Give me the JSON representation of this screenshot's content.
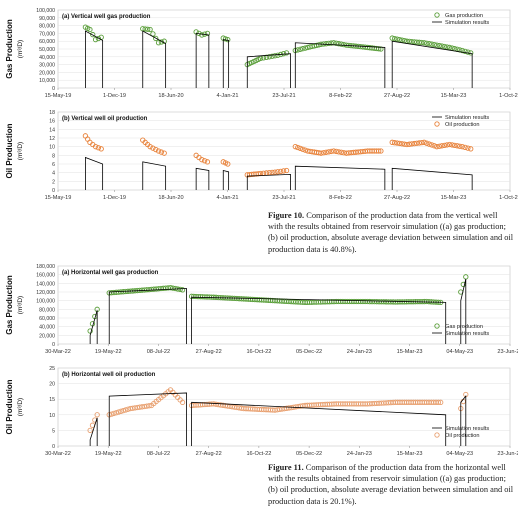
{
  "figure10": {
    "panel_a": {
      "chart_data": {
        "type": "line",
        "title": "(a) Vertical well gas production",
        "ylabel": "Gas Production (m³/D)",
        "ylim": [
          0,
          100000
        ],
        "yticks": [
          "0",
          "10,000",
          "20,000",
          "30,000",
          "40,000",
          "50,000",
          "60,000",
          "70,000",
          "80,000",
          "90,000",
          "100,000"
        ],
        "xticks": [
          "15-May-19",
          "1-Dec-19",
          "18-Jun-20",
          "4-Jan-21",
          "23-Jul-21",
          "8-Feb-22",
          "27-Aug-22",
          "15-Mar-23",
          "1-Oct-23"
        ],
        "xrange": [
          "2019-05-15",
          "2023-10-01"
        ],
        "legend": [
          "Gas production",
          "Simulation results"
        ],
        "legend_position": "top-right",
        "colors": {
          "observed": "#5a9e3a",
          "simulation": "#000000"
        },
        "series": [
          {
            "name": "Gas production",
            "style": "markers",
            "segments": [
              {
                "x": [
                  "2019-08-20",
                  "2019-09-05",
                  "2019-09-25",
                  "2019-10-15"
                ],
                "y": [
                  78000,
                  75000,
                  62000,
                  65000
                ]
              },
              {
                "x": [
                  "2020-03-10",
                  "2020-04-05",
                  "2020-05-05",
                  "2020-05-25"
                ],
                "y": [
                  76000,
                  75000,
                  58000,
                  60000
                ]
              },
              {
                "x": [
                  "2020-09-15",
                  "2020-10-05",
                  "2020-10-25"
                ],
                "y": [
                  72000,
                  68000,
                  70000
                ]
              },
              {
                "x": [
                  "2020-12-20",
                  "2021-01-05"
                ],
                "y": [
                  64000,
                  62000
                ]
              },
              {
                "x": [
                  "2021-03-15",
                  "2021-05-01",
                  "2021-06-01",
                  "2021-07-01",
                  "2021-08-01"
                ],
                "y": [
                  30000,
                  38000,
                  40000,
                  42000,
                  45000
                ]
              },
              {
                "x": [
                  "2021-09-01",
                  "2021-10-15",
                  "2021-12-01",
                  "2022-01-15",
                  "2022-03-01",
                  "2022-05-15",
                  "2022-07-01"
                ],
                "y": [
                  48000,
                  52000,
                  56000,
                  58000,
                  55000,
                  52000,
                  50000
                ]
              },
              {
                "x": [
                  "2022-08-10",
                  "2022-10-01",
                  "2022-12-01",
                  "2023-01-15",
                  "2023-03-01",
                  "2023-04-15",
                  "2023-05-15"
                ],
                "y": [
                  64000,
                  60000,
                  58000,
                  55000,
                  52000,
                  48000,
                  45000
                ]
              }
            ]
          },
          {
            "name": "Simulation results",
            "style": "line",
            "segments": [
              {
                "x": [
                  "2019-08-20",
                  "2019-10-20"
                ],
                "y": [
                  73000,
                  61000
                ]
              },
              {
                "x": [
                  "2020-03-10",
                  "2020-05-30"
                ],
                "y": [
                  73000,
                  57000
                ]
              },
              {
                "x": [
                  "2020-09-15",
                  "2020-10-30"
                ],
                "y": [
                  70000,
                  68000
                ]
              },
              {
                "x": [
                  "2020-12-20",
                  "2021-01-08"
                ],
                "y": [
                  62000,
                  61000
                ]
              },
              {
                "x": [
                  "2021-03-15",
                  "2021-08-15"
                ],
                "y": [
                  40000,
                  44000
                ]
              },
              {
                "x": [
                  "2021-09-01",
                  "2022-07-15"
                ],
                "y": [
                  58000,
                  52000
                ]
              },
              {
                "x": [
                  "2022-08-10",
                  "2023-05-20"
                ],
                "y": [
                  60000,
                  44000
                ]
              }
            ]
          }
        ]
      }
    },
    "panel_b": {
      "chart_data": {
        "type": "line",
        "title": "(b) Vertical well oil production",
        "ylabel": "Oil Production (m³/D)",
        "ylim": [
          0,
          18
        ],
        "yticks": [
          "0",
          "2",
          "4",
          "6",
          "8",
          "10",
          "12",
          "14",
          "16",
          "18"
        ],
        "xticks": [
          "15-May-19",
          "1-Dec-19",
          "18-Jun-20",
          "4-Jan-21",
          "23-Jul-21",
          "8-Feb-22",
          "27-Aug-22",
          "15-Mar-23",
          "1-Oct-23"
        ],
        "xrange": [
          "2019-05-15",
          "2023-10-01"
        ],
        "legend": [
          "Simulation results",
          "Oil production"
        ],
        "legend_position": "top-right",
        "colors": {
          "observed": "#e8823a",
          "simulation": "#000000"
        },
        "series": [
          {
            "name": "Oil production",
            "style": "markers",
            "segments": [
              {
                "x": [
                  "2019-08-20",
                  "2019-09-05",
                  "2019-09-25",
                  "2019-10-15"
                ],
                "y": [
                  12.5,
                  11,
                  10,
                  9.5
                ]
              },
              {
                "x": [
                  "2020-03-10",
                  "2020-04-05",
                  "2020-05-05",
                  "2020-05-25"
                ],
                "y": [
                  11.5,
                  10,
                  9,
                  8.5
                ]
              },
              {
                "x": [
                  "2020-09-15",
                  "2020-10-05",
                  "2020-10-25"
                ],
                "y": [
                  8,
                  7,
                  6.5
                ]
              },
              {
                "x": [
                  "2020-12-20",
                  "2021-01-05"
                ],
                "y": [
                  6.5,
                  6
                ]
              },
              {
                "x": [
                  "2021-03-15",
                  "2021-05-01",
                  "2021-06-01",
                  "2021-07-01",
                  "2021-08-01"
                ],
                "y": [
                  3.5,
                  3.8,
                  4,
                  4.2,
                  4.5
                ]
              },
              {
                "x": [
                  "2021-09-01",
                  "2021-10-15",
                  "2021-12-01",
                  "2022-01-15",
                  "2022-03-01",
                  "2022-05-15",
                  "2022-07-01"
                ],
                "y": [
                  10,
                  9,
                  8.5,
                  9,
                  8.5,
                  9,
                  9
                ]
              },
              {
                "x": [
                  "2022-08-10",
                  "2022-10-01",
                  "2022-12-01",
                  "2023-01-15",
                  "2023-03-01",
                  "2023-04-15",
                  "2023-05-15"
                ],
                "y": [
                  11,
                  10.5,
                  11,
                  10,
                  10.5,
                  10,
                  9.5
                ]
              }
            ]
          },
          {
            "name": "Simulation results",
            "style": "line",
            "segments": [
              {
                "x": [
                  "2019-08-20",
                  "2019-10-20"
                ],
                "y": [
                  7.5,
                  6
                ]
              },
              {
                "x": [
                  "2020-03-10",
                  "2020-05-30"
                ],
                "y": [
                  6.5,
                  5.5
                ]
              },
              {
                "x": [
                  "2020-09-15",
                  "2020-10-30"
                ],
                "y": [
                  5,
                  4.5
                ]
              },
              {
                "x": [
                  "2020-12-20",
                  "2021-01-08"
                ],
                "y": [
                  4.5,
                  4.2
                ]
              },
              {
                "x": [
                  "2021-03-15",
                  "2021-08-15"
                ],
                "y": [
                  3.2,
                  3.6
                ]
              },
              {
                "x": [
                  "2021-09-01",
                  "2022-07-15"
                ],
                "y": [
                  5.5,
                  4.8
                ]
              },
              {
                "x": [
                  "2022-08-10",
                  "2023-05-20"
                ],
                "y": [
                  5,
                  3.5
                ]
              }
            ]
          }
        ]
      }
    },
    "caption": {
      "label": "Figure 10.",
      "text": " Comparison of the production data from the vertical well with the results obtained from reservoir simulation ((a) gas production; (b) oil production, absolute average deviation between simulation and oil production data is 40.8%)."
    }
  },
  "figure11": {
    "panel_a": {
      "chart_data": {
        "type": "line",
        "title": "(a) Horizontal well gas production",
        "ylabel": "Gas Production (m³/D)",
        "ylim": [
          0,
          180000
        ],
        "yticks": [
          "0",
          "20,000",
          "40,000",
          "60,000",
          "80,000",
          "100,000",
          "120,000",
          "140,000",
          "160,000",
          "180,000"
        ],
        "xticks": [
          "30-Mar-22",
          "19-May-22",
          "08-Jul-22",
          "27-Aug-22",
          "16-Oct-22",
          "05-Dec-22",
          "24-Jan-23",
          "15-Mar-23",
          "04-May-23",
          "23-Jun-23"
        ],
        "xrange": [
          "2022-03-30",
          "2023-06-23"
        ],
        "legend": [
          "Gas production",
          "Simulation results"
        ],
        "legend_position": "bottom-right",
        "colors": {
          "observed": "#5a9e3a",
          "simulation": "#000000"
        },
        "series": [
          {
            "name": "Gas production",
            "style": "markers",
            "segments": [
              {
                "x": [
                  "2022-05-01",
                  "2022-05-08"
                ],
                "y": [
                  30000,
                  80000
                ]
              },
              {
                "x": [
                  "2022-05-20",
                  "2022-06-10",
                  "2022-07-01",
                  "2022-07-20",
                  "2022-08-01"
                ],
                "y": [
                  118000,
                  122000,
                  126000,
                  130000,
                  125000
                ]
              },
              {
                "x": [
                  "2022-08-10",
                  "2022-09-01",
                  "2022-10-01",
                  "2022-11-01",
                  "2022-12-01",
                  "2023-01-01",
                  "2023-02-01",
                  "2023-03-01",
                  "2023-04-01",
                  "2023-04-15"
                ],
                "y": [
                  110000,
                  108000,
                  104000,
                  100000,
                  96000,
                  98000,
                  98000,
                  97000,
                  98000,
                  96000
                ]
              },
              {
                "x": [
                  "2023-05-05",
                  "2023-05-10"
                ],
                "y": [
                  120000,
                  155000
                ]
              }
            ]
          },
          {
            "name": "Simulation results",
            "style": "line",
            "segments": [
              {
                "x": [
                  "2022-05-01",
                  "2022-05-08"
                ],
                "y": [
                  20000,
                  78000
                ]
              },
              {
                "x": [
                  "2022-05-20",
                  "2022-08-05"
                ],
                "y": [
                  120000,
                  128000
                ]
              },
              {
                "x": [
                  "2022-08-10",
                  "2023-04-20"
                ],
                "y": [
                  108000,
                  96000
                ]
              },
              {
                "x": [
                  "2023-05-05",
                  "2023-05-10"
                ],
                "y": [
                  100000,
                  150000
                ]
              }
            ]
          }
        ]
      }
    },
    "panel_b": {
      "chart_data": {
        "type": "line",
        "title": "(b) Horizontal well oil production",
        "ylabel": "Oil Production (m³/D)",
        "ylim": [
          0,
          25
        ],
        "yticks": [
          "0",
          "5",
          "10",
          "15",
          "20",
          "25"
        ],
        "xticks": [
          "30-Mar-22",
          "19-May-22",
          "08-Jul-22",
          "27-Aug-22",
          "16-Oct-22",
          "05-Dec-22",
          "24-Jan-23",
          "15-Mar-23",
          "04-May-23",
          "23-Jun-23"
        ],
        "xrange": [
          "2022-03-30",
          "2023-06-23"
        ],
        "legend": [
          "Simulation results",
          "Oil production"
        ],
        "legend_position": "bottom-right",
        "colors": {
          "observed": "#e8a070",
          "simulation": "#000000"
        },
        "series": [
          {
            "name": "Oil production",
            "style": "markers",
            "segments": [
              {
                "x": [
                  "2022-05-01",
                  "2022-05-08"
                ],
                "y": [
                  5,
                  10
                ]
              },
              {
                "x": [
                  "2022-05-20",
                  "2022-06-10",
                  "2022-07-01",
                  "2022-07-20",
                  "2022-08-01"
                ],
                "y": [
                  10,
                  12,
                  13,
                  18,
                  14
                ]
              },
              {
                "x": [
                  "2022-08-10",
                  "2022-09-01",
                  "2022-10-01",
                  "2022-11-01",
                  "2022-12-01",
                  "2023-01-01",
                  "2023-02-01",
                  "2023-03-01",
                  "2023-04-01",
                  "2023-04-15"
                ],
                "y": [
                  13,
                  13.5,
                  12,
                  11.5,
                  13,
                  13.5,
                  13.5,
                  14,
                  14,
                  14
                ]
              },
              {
                "x": [
                  "2023-05-05",
                  "2023-05-10"
                ],
                "y": [
                  12,
                  16.5
                ]
              }
            ]
          },
          {
            "name": "Simulation results",
            "style": "line",
            "segments": [
              {
                "x": [
                  "2022-05-01",
                  "2022-05-08"
                ],
                "y": [
                  2,
                  9
                ]
              },
              {
                "x": [
                  "2022-05-20",
                  "2022-08-05"
                ],
                "y": [
                  16,
                  17
                ]
              },
              {
                "x": [
                  "2022-08-10",
                  "2023-04-20"
                ],
                "y": [
                  14,
                  10
                ]
              },
              {
                "x": [
                  "2023-05-05",
                  "2023-05-10"
                ],
                "y": [
                  14,
                  16
                ]
              }
            ]
          }
        ]
      }
    },
    "caption": {
      "label": "Figure 11.",
      "text": " Comparison of the production data from the horizontal well with the results obtained from reservoir simulation ((a) gas production; (b) oil production, absolute average deviation between simulation and oil production data is 20.1%)."
    }
  }
}
